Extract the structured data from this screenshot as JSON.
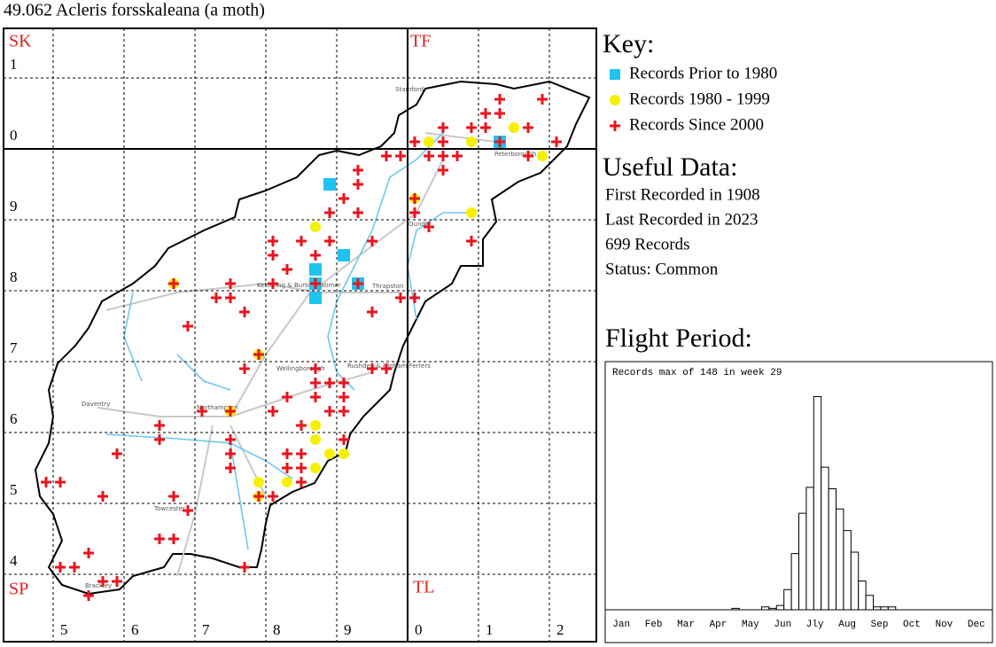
{
  "title": "49.062 Acleris forsskaleana (a moth)",
  "map": {
    "grid_squares": [
      "SK",
      "TF",
      "SP",
      "TL"
    ],
    "eastings": [
      "5",
      "6",
      "7",
      "8",
      "9",
      "0",
      "1",
      "2"
    ],
    "northings": [
      "1",
      "0",
      "9",
      "8",
      "7",
      "6",
      "5",
      "4"
    ],
    "towns": [
      "Stamford",
      "Peterborough",
      "Oundle",
      "Kettering & Burton Latimer",
      "Thrapston",
      "Wellingborough",
      "Rushden & Higham Ferrers",
      "Daventry",
      "Northampton",
      "Towcester",
      "Brackley"
    ]
  },
  "key": {
    "title": "Key:",
    "items": [
      {
        "label": "Records Prior to 1980",
        "color": "#1ec3f0",
        "marker": "square",
        "points": [
          [
            489,
            295
          ],
          [
            491,
            285
          ],
          [
            487,
            283
          ],
          [
            487,
            281
          ],
          [
            487,
            279
          ],
          [
            493,
            281
          ],
          [
            513,
            301
          ]
        ]
      },
      {
        "label": "Records 1980 - 1999",
        "color": "#f5f000",
        "marker": "circle",
        "points": [
          [
            503,
            301
          ],
          [
            509,
            301
          ],
          [
            515,
            303
          ],
          [
            519,
            299
          ],
          [
            501,
            293
          ],
          [
            509,
            291
          ],
          [
            487,
            289
          ],
          [
            467,
            281
          ],
          [
            479,
            271
          ],
          [
            475,
            263
          ],
          [
            487,
            261
          ],
          [
            487,
            259
          ],
          [
            489,
            257
          ],
          [
            491,
            257
          ],
          [
            487,
            255
          ],
          [
            483,
            253
          ],
          [
            479,
            253
          ],
          [
            479,
            251
          ]
        ]
      },
      {
        "label": "Records Since 2000",
        "color": "#e8141e",
        "marker": "cross",
        "points": [
          [
            513,
            307
          ],
          [
            519,
            307
          ],
          [
            511,
            305
          ],
          [
            513,
            305
          ],
          [
            509,
            303
          ],
          [
            511,
            303
          ],
          [
            505,
            303
          ],
          [
            517,
            303
          ],
          [
            501,
            301
          ],
          [
            505,
            301
          ],
          [
            513,
            301
          ],
          [
            521,
            301
          ],
          [
            503,
            299
          ],
          [
            505,
            299
          ],
          [
            507,
            299
          ],
          [
            517,
            299
          ],
          [
            505,
            297
          ],
          [
            499,
            299
          ],
          [
            497,
            299
          ],
          [
            493,
            297
          ],
          [
            493,
            295
          ],
          [
            491,
            293
          ],
          [
            493,
            291
          ],
          [
            489,
            291
          ],
          [
            501,
            293
          ],
          [
            501,
            291
          ],
          [
            503,
            289
          ],
          [
            509,
            287
          ],
          [
            495,
            287
          ],
          [
            489,
            287
          ],
          [
            485,
            287
          ],
          [
            481,
            287
          ],
          [
            481,
            285
          ],
          [
            487,
            285
          ],
          [
            483,
            283
          ],
          [
            467,
            281
          ],
          [
            475,
            281
          ],
          [
            481,
            281
          ],
          [
            487,
            281
          ],
          [
            493,
            281
          ],
          [
            499,
            279
          ],
          [
            501,
            279
          ],
          [
            473,
            279
          ],
          [
            475,
            279
          ],
          [
            477,
            277
          ],
          [
            495,
            277
          ],
          [
            469,
            275
          ],
          [
            479,
            271
          ],
          [
            477,
            269
          ],
          [
            487,
            269
          ],
          [
            495,
            269
          ],
          [
            497,
            269
          ],
          [
            487,
            267
          ],
          [
            489,
            267
          ],
          [
            491,
            267
          ],
          [
            483,
            265
          ],
          [
            487,
            265
          ],
          [
            491,
            265
          ],
          [
            471,
            263
          ],
          [
            475,
            263
          ],
          [
            481,
            263
          ],
          [
            489,
            263
          ],
          [
            491,
            263
          ],
          [
            465,
            261
          ],
          [
            485,
            261
          ],
          [
            465,
            259
          ],
          [
            475,
            259
          ],
          [
            491,
            259
          ],
          [
            459,
            257
          ],
          [
            475,
            257
          ],
          [
            483,
            257
          ],
          [
            485,
            257
          ],
          [
            475,
            255
          ],
          [
            483,
            255
          ],
          [
            485,
            255
          ],
          [
            449,
            253
          ],
          [
            451,
            253
          ],
          [
            485,
            253
          ],
          [
            479,
            251
          ],
          [
            481,
            251
          ],
          [
            457,
            251
          ],
          [
            467,
            251
          ],
          [
            469,
            249
          ],
          [
            455,
            243
          ],
          [
            465,
            245
          ],
          [
            467,
            245
          ],
          [
            451,
            241
          ],
          [
            453,
            241
          ],
          [
            477,
            241
          ],
          [
            457,
            239
          ],
          [
            459,
            239
          ],
          [
            455,
            237
          ]
        ]
      }
    ]
  },
  "useful_data": {
    "title": "Useful Data:",
    "lines": [
      "First Recorded in 1908",
      "Last Recorded in 2023",
      "699 Records",
      "Status: Common"
    ]
  },
  "chart_data": {
    "type": "bar",
    "title": "Flight Period:",
    "annotation": "Records max of 148 in week 29",
    "months": [
      "Jan",
      "Feb",
      "Mar",
      "Apr",
      "May",
      "Jun",
      "Jly",
      "Aug",
      "Sep",
      "Oct",
      "Nov",
      "Dec"
    ],
    "values": [
      0,
      0,
      0,
      0,
      0,
      0,
      0,
      0,
      0,
      0,
      0,
      0,
      0,
      0,
      0,
      0,
      0,
      1,
      0,
      0,
      0,
      2,
      1,
      3,
      14,
      39,
      67,
      85,
      148,
      99,
      84,
      70,
      55,
      40,
      20,
      10,
      2,
      2,
      2,
      0,
      0,
      0,
      0,
      0,
      0,
      0,
      0,
      0,
      0,
      0,
      0,
      0
    ],
    "ylim": [
      0,
      160
    ],
    "color": "#ffffff"
  }
}
